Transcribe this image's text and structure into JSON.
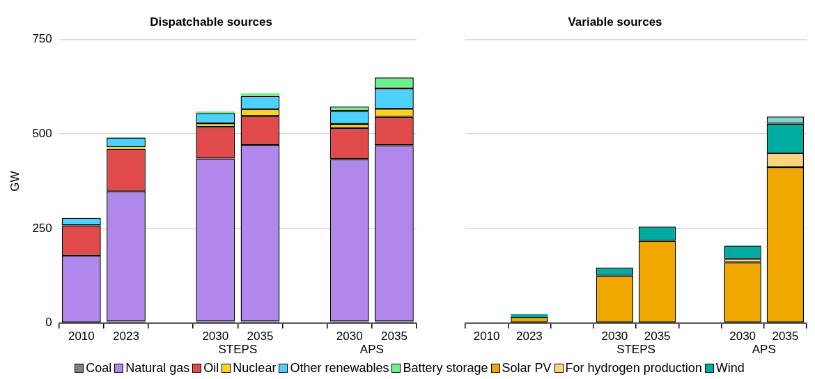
{
  "chart_data": [
    {
      "type": "bar",
      "title": "Dispatchable sources",
      "ylabel": "GW",
      "stacked": true,
      "categories": [
        "2010",
        "2023",
        null,
        "2030",
        "2035",
        null,
        "2030",
        "2035"
      ],
      "annotations": [
        "STEPS",
        "APS"
      ],
      "ylim": [
        0,
        750
      ],
      "yticks": [
        0,
        250,
        500,
        750
      ],
      "grid": "y",
      "legend": "bottom",
      "series": [
        {
          "name": "Coal",
          "color": "#808080",
          "values": [
            null,
            4,
            null,
            4,
            4,
            null,
            4,
            4
          ]
        },
        {
          "name": "Natural gas",
          "color": "#b088eb",
          "values": [
            178,
            344,
            null,
            431,
            467,
            null,
            429,
            466
          ]
        },
        {
          "name": "Oil",
          "color": "#e04a4a",
          "values": [
            80,
            112,
            null,
            83,
            76,
            null,
            82,
            75
          ]
        },
        {
          "name": "Nuclear",
          "color": "#ffd21f",
          "values": [
            0,
            5,
            null,
            10,
            18,
            null,
            11,
            21
          ]
        },
        {
          "name": "Other renewables",
          "color": "#4dd2ff",
          "values": [
            20,
            25,
            null,
            27,
            35,
            null,
            34,
            54
          ]
        },
        {
          "name": "Battery storage",
          "color": "#6ef08f",
          "values": [
            0,
            1,
            null,
            4,
            7,
            null,
            12,
            29
          ]
        }
      ]
    },
    {
      "type": "bar",
      "title": "Variable sources",
      "stacked": true,
      "categories": [
        "2010",
        "2023",
        null,
        "2030",
        "2035",
        null,
        "2030",
        "2035"
      ],
      "annotations": [
        "STEPS",
        "APS"
      ],
      "ylim": [
        0,
        750
      ],
      "yticks": [
        0,
        250,
        500,
        750
      ],
      "grid": "y",
      "tick_labels": "x",
      "legend": "bottom",
      "series": [
        {
          "name": "Solar PV",
          "color": "#f0a800",
          "values": [
            null,
            16,
            null,
            125,
            217,
            null,
            160,
            412
          ]
        },
        {
          "name": "For hydrogen production",
          "color": "#f8d47f",
          "values": [
            0,
            0,
            null,
            0,
            0,
            null,
            10,
            37
          ]
        },
        {
          "name": "Wind",
          "color": "#00ab9f",
          "values": [
            0,
            7,
            null,
            21,
            38,
            null,
            34,
            78
          ]
        },
        {
          "color": "#7fd5cf",
          "values": [
            0,
            0,
            null,
            0,
            0,
            null,
            2,
            19
          ]
        }
      ]
    }
  ]
}
